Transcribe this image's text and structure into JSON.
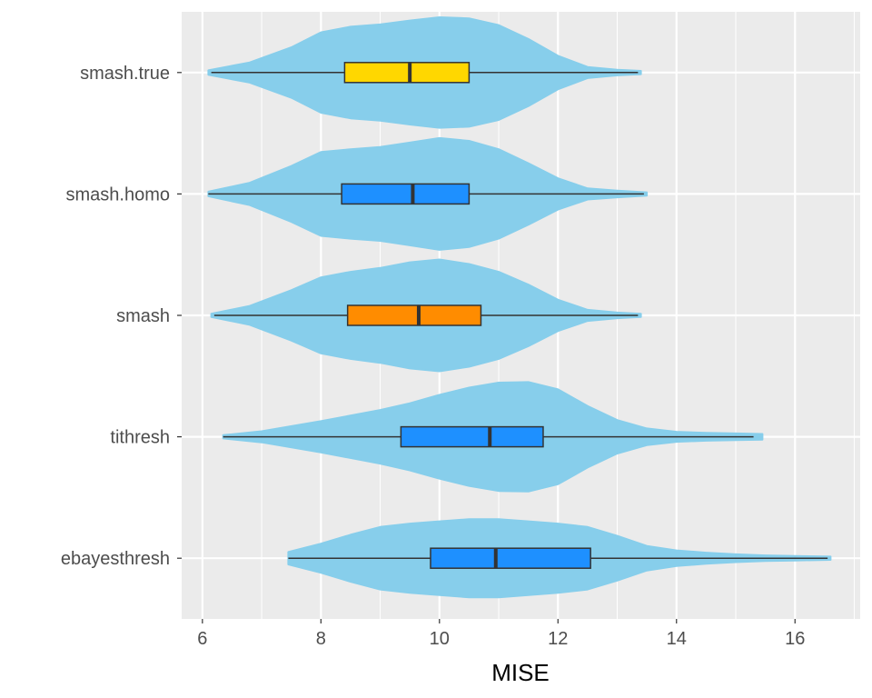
{
  "chart_data": {
    "type": "violin",
    "orientation": "horizontal",
    "title": "",
    "xlabel": "MISE",
    "ylabel": "",
    "xlim": [
      5.65,
      17.1
    ],
    "x_ticks": [
      6,
      8,
      10,
      12,
      14,
      16
    ],
    "x_tick_labels": [
      "6",
      "8",
      "10",
      "12",
      "14",
      "16"
    ],
    "grid": true,
    "legend": "none",
    "colors": {
      "panel_background": "#ebebeb",
      "grid": "#ffffff",
      "violin_fill": "#87ceeb",
      "box_outline": "#333333"
    },
    "categories": [
      "smash.true",
      "smash.homo",
      "smash",
      "tithresh",
      "ebayesthresh"
    ],
    "series": [
      {
        "category": "smash.true",
        "box_color": "#ffd700",
        "min": 6.15,
        "q1": 8.4,
        "median": 9.5,
        "q3": 10.5,
        "max": 13.35,
        "violin_range": [
          6.1,
          13.4
        ],
        "density_x": [
          6.1,
          6.8,
          7.5,
          8.0,
          8.5,
          9.0,
          9.5,
          10.0,
          10.5,
          11.0,
          11.5,
          12.0,
          12.5,
          13.0,
          13.4
        ],
        "density_w": [
          0.04,
          0.18,
          0.45,
          0.72,
          0.82,
          0.86,
          0.93,
          0.99,
          0.97,
          0.85,
          0.6,
          0.3,
          0.1,
          0.05,
          0.03
        ]
      },
      {
        "category": "smash.homo",
        "box_color": "#1e90ff",
        "min": 6.1,
        "q1": 8.35,
        "median": 9.55,
        "q3": 10.5,
        "max": 13.45,
        "violin_range": [
          6.1,
          13.5
        ],
        "density_x": [
          6.1,
          6.8,
          7.5,
          8.0,
          8.5,
          9.0,
          9.5,
          10.0,
          10.5,
          11.0,
          11.5,
          12.0,
          12.5,
          13.0,
          13.5
        ],
        "density_w": [
          0.04,
          0.2,
          0.5,
          0.75,
          0.8,
          0.84,
          0.92,
          1.0,
          0.95,
          0.8,
          0.55,
          0.28,
          0.1,
          0.06,
          0.03
        ]
      },
      {
        "category": "smash",
        "box_color": "#ff8c00",
        "min": 6.2,
        "q1": 8.45,
        "median": 9.65,
        "q3": 10.7,
        "max": 13.35,
        "violin_range": [
          6.15,
          13.4
        ],
        "density_x": [
          6.15,
          6.8,
          7.5,
          8.0,
          8.5,
          9.0,
          9.5,
          10.0,
          10.5,
          11.0,
          11.5,
          12.0,
          12.5,
          13.0,
          13.4
        ],
        "density_w": [
          0.03,
          0.17,
          0.45,
          0.68,
          0.78,
          0.85,
          0.95,
          1.0,
          0.92,
          0.78,
          0.55,
          0.28,
          0.1,
          0.05,
          0.03
        ]
      },
      {
        "category": "tithresh",
        "box_color": "#1e90ff",
        "min": 6.35,
        "q1": 9.35,
        "median": 10.85,
        "q3": 11.75,
        "max": 15.3,
        "violin_range": [
          6.35,
          15.45
        ],
        "density_x": [
          6.35,
          7.0,
          8.0,
          9.0,
          9.5,
          10.0,
          10.5,
          11.0,
          11.5,
          12.0,
          12.5,
          13.0,
          13.5,
          14.0,
          14.5,
          15.0,
          15.45
        ],
        "density_w": [
          0.03,
          0.1,
          0.28,
          0.48,
          0.6,
          0.75,
          0.88,
          0.97,
          0.98,
          0.85,
          0.55,
          0.3,
          0.15,
          0.09,
          0.07,
          0.06,
          0.05
        ]
      },
      {
        "category": "ebayesthresh",
        "box_color": "#1e90ff",
        "min": 7.45,
        "q1": 9.85,
        "median": 10.95,
        "q3": 12.55,
        "max": 16.55,
        "violin_range": [
          7.45,
          16.6
        ],
        "density_x": [
          7.45,
          8.0,
          8.5,
          9.0,
          9.5,
          10.0,
          10.5,
          11.0,
          11.5,
          12.0,
          12.5,
          13.0,
          13.5,
          14.0,
          14.5,
          15.0,
          15.5,
          16.0,
          16.6
        ],
        "density_w": [
          0.11,
          0.26,
          0.42,
          0.56,
          0.62,
          0.66,
          0.7,
          0.7,
          0.66,
          0.62,
          0.56,
          0.4,
          0.22,
          0.14,
          0.1,
          0.07,
          0.05,
          0.04,
          0.03
        ]
      }
    ]
  }
}
